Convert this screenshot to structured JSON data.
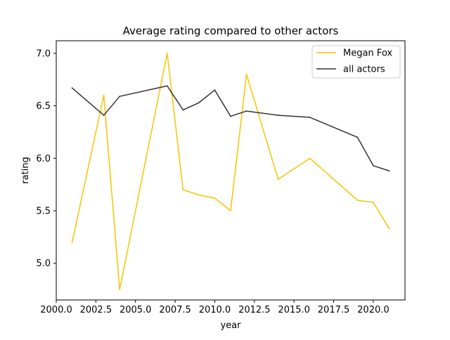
{
  "chart_data": {
    "type": "line",
    "title": "Average rating compared to other actors",
    "xlabel": "year",
    "ylabel": "rating",
    "xlim": [
      2000.0,
      2022.0
    ],
    "ylim": [
      4.65,
      7.12
    ],
    "xticks": [
      2000.0,
      2002.5,
      2005.0,
      2007.5,
      2010.0,
      2012.5,
      2015.0,
      2017.5,
      2020.0
    ],
    "xtick_labels": [
      "2000.0",
      "2002.5",
      "2005.0",
      "2007.5",
      "2010.0",
      "2012.5",
      "2015.0",
      "2017.5",
      "2020.0"
    ],
    "yticks": [
      5.0,
      5.5,
      6.0,
      6.5,
      7.0
    ],
    "ytick_labels": [
      "5.0",
      "5.5",
      "6.0",
      "6.5",
      "7.0"
    ],
    "grid": false,
    "legend_position": "top-right",
    "series": [
      {
        "name": "Megan Fox",
        "color": "#f5c400",
        "x": [
          2001,
          2003,
          2004,
          2007,
          2008,
          2009,
          2010,
          2011,
          2012,
          2014,
          2016,
          2019,
          2020,
          2021
        ],
        "y": [
          5.2,
          6.6,
          4.75,
          7.0,
          5.7,
          5.65,
          5.62,
          5.5,
          6.8,
          5.8,
          6.0,
          5.6,
          5.58,
          5.33
        ]
      },
      {
        "name": "all actors",
        "color": "#333333",
        "x": [
          2001,
          2003,
          2004,
          2007,
          2008,
          2009,
          2010,
          2011,
          2012,
          2014,
          2016,
          2019,
          2020,
          2021
        ],
        "y": [
          6.67,
          6.41,
          6.59,
          6.69,
          6.46,
          6.53,
          6.65,
          6.4,
          6.45,
          6.41,
          6.39,
          6.2,
          5.93,
          5.88
        ]
      }
    ]
  }
}
